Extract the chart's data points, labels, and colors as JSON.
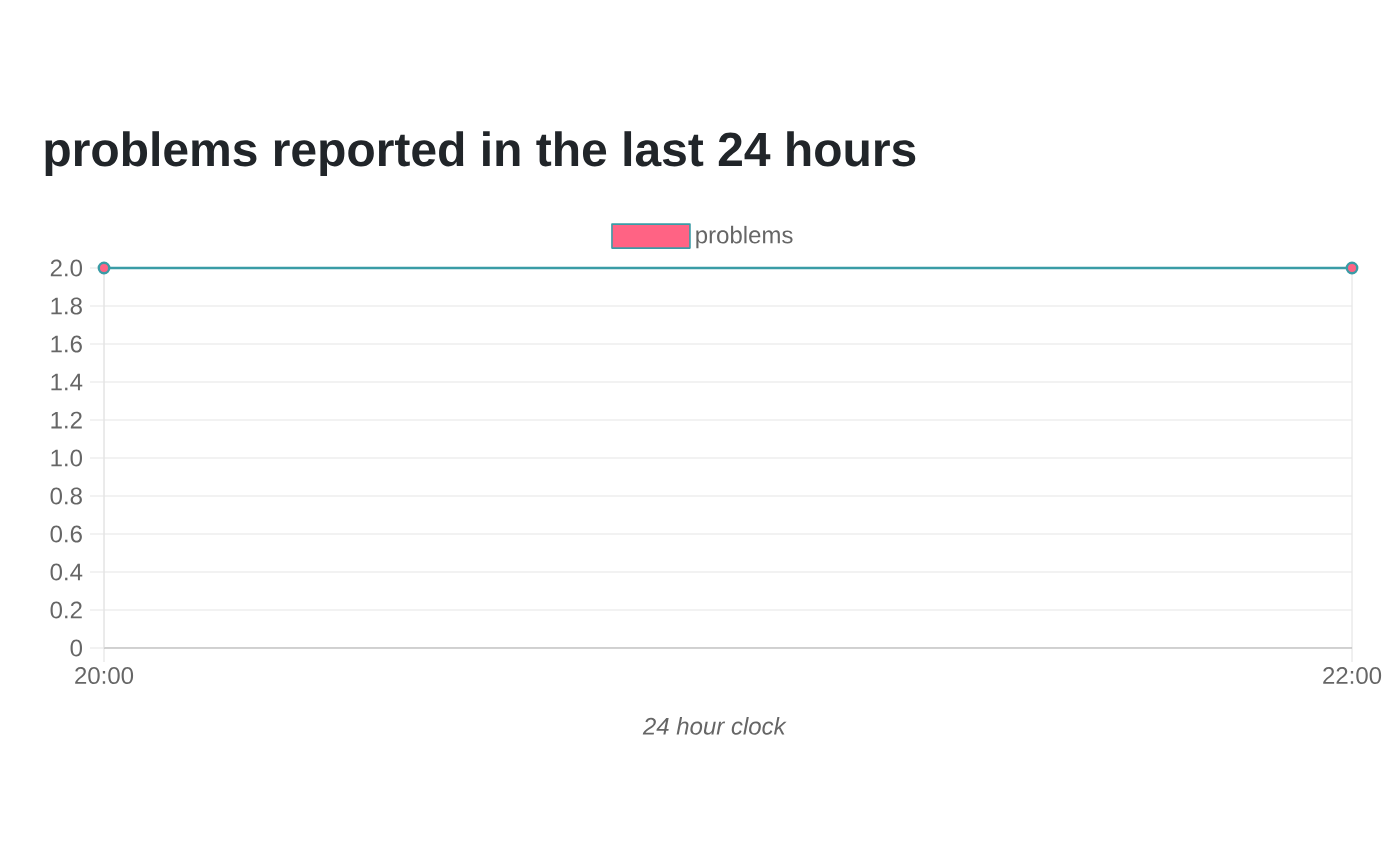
{
  "chart_data": {
    "type": "line",
    "title": "problems reported in the last 24 hours",
    "xlabel": "24 hour clock",
    "x": [
      20,
      22
    ],
    "series": [
      {
        "name": "problems",
        "color": "#3a9ca6",
        "values": [
          2,
          2
        ]
      }
    ],
    "xlim": [
      20,
      22
    ],
    "xticks": [
      {
        "value": 20,
        "label": "20:00"
      },
      {
        "value": 22,
        "label": "22:00"
      }
    ],
    "ylim": [
      0,
      2
    ],
    "yticks": [
      0,
      0.2,
      0.4,
      0.6,
      0.8,
      {
        "value": 1,
        "label": "1.0"
      },
      1.2,
      1.4,
      1.6,
      1.8,
      {
        "value": 2,
        "label": "2.0"
      }
    ],
    "grid": true,
    "legend": "top",
    "marker": "circle",
    "line_style": "solid"
  }
}
